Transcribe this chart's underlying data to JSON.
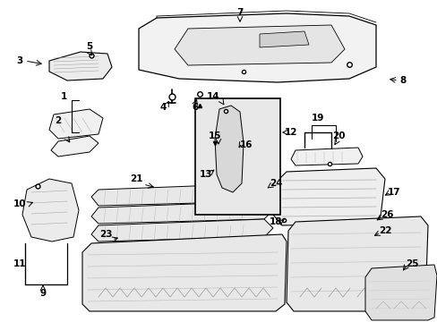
{
  "bg": "#ffffff",
  "fig_w": 4.89,
  "fig_h": 3.6,
  "dpi": 100,
  "label_fontsize": 7.5,
  "small_fontsize": 6.5
}
